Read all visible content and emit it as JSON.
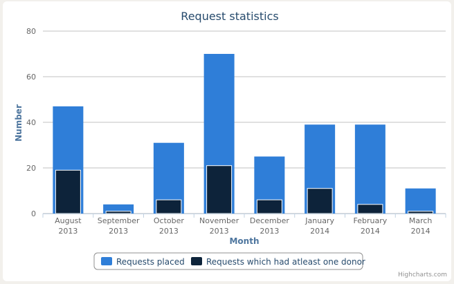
{
  "chart_data": {
    "type": "bar",
    "title": "Request statistics",
    "xlabel": "Month",
    "ylabel": "Number",
    "ylim": [
      0,
      80
    ],
    "yticks": [
      0,
      20,
      40,
      60,
      80
    ],
    "grid": true,
    "legend_position": "bottom-center",
    "categories": [
      [
        "August",
        "2013"
      ],
      [
        "September",
        "2013"
      ],
      [
        "October",
        "2013"
      ],
      [
        "November",
        "2013"
      ],
      [
        "December",
        "2013"
      ],
      [
        "January",
        "2014"
      ],
      [
        "February",
        "2014"
      ],
      [
        "March",
        "2014"
      ]
    ],
    "series": [
      {
        "name": "Requests placed",
        "color": "#2f7ed8",
        "values": [
          47,
          4,
          31,
          70,
          25,
          39,
          39,
          11
        ]
      },
      {
        "name": "Requests which had atleast one donor",
        "color": "#0d233a",
        "values": [
          19,
          1,
          6,
          21,
          6,
          11,
          4,
          1
        ]
      }
    ]
  },
  "credits": "Highcharts.com"
}
